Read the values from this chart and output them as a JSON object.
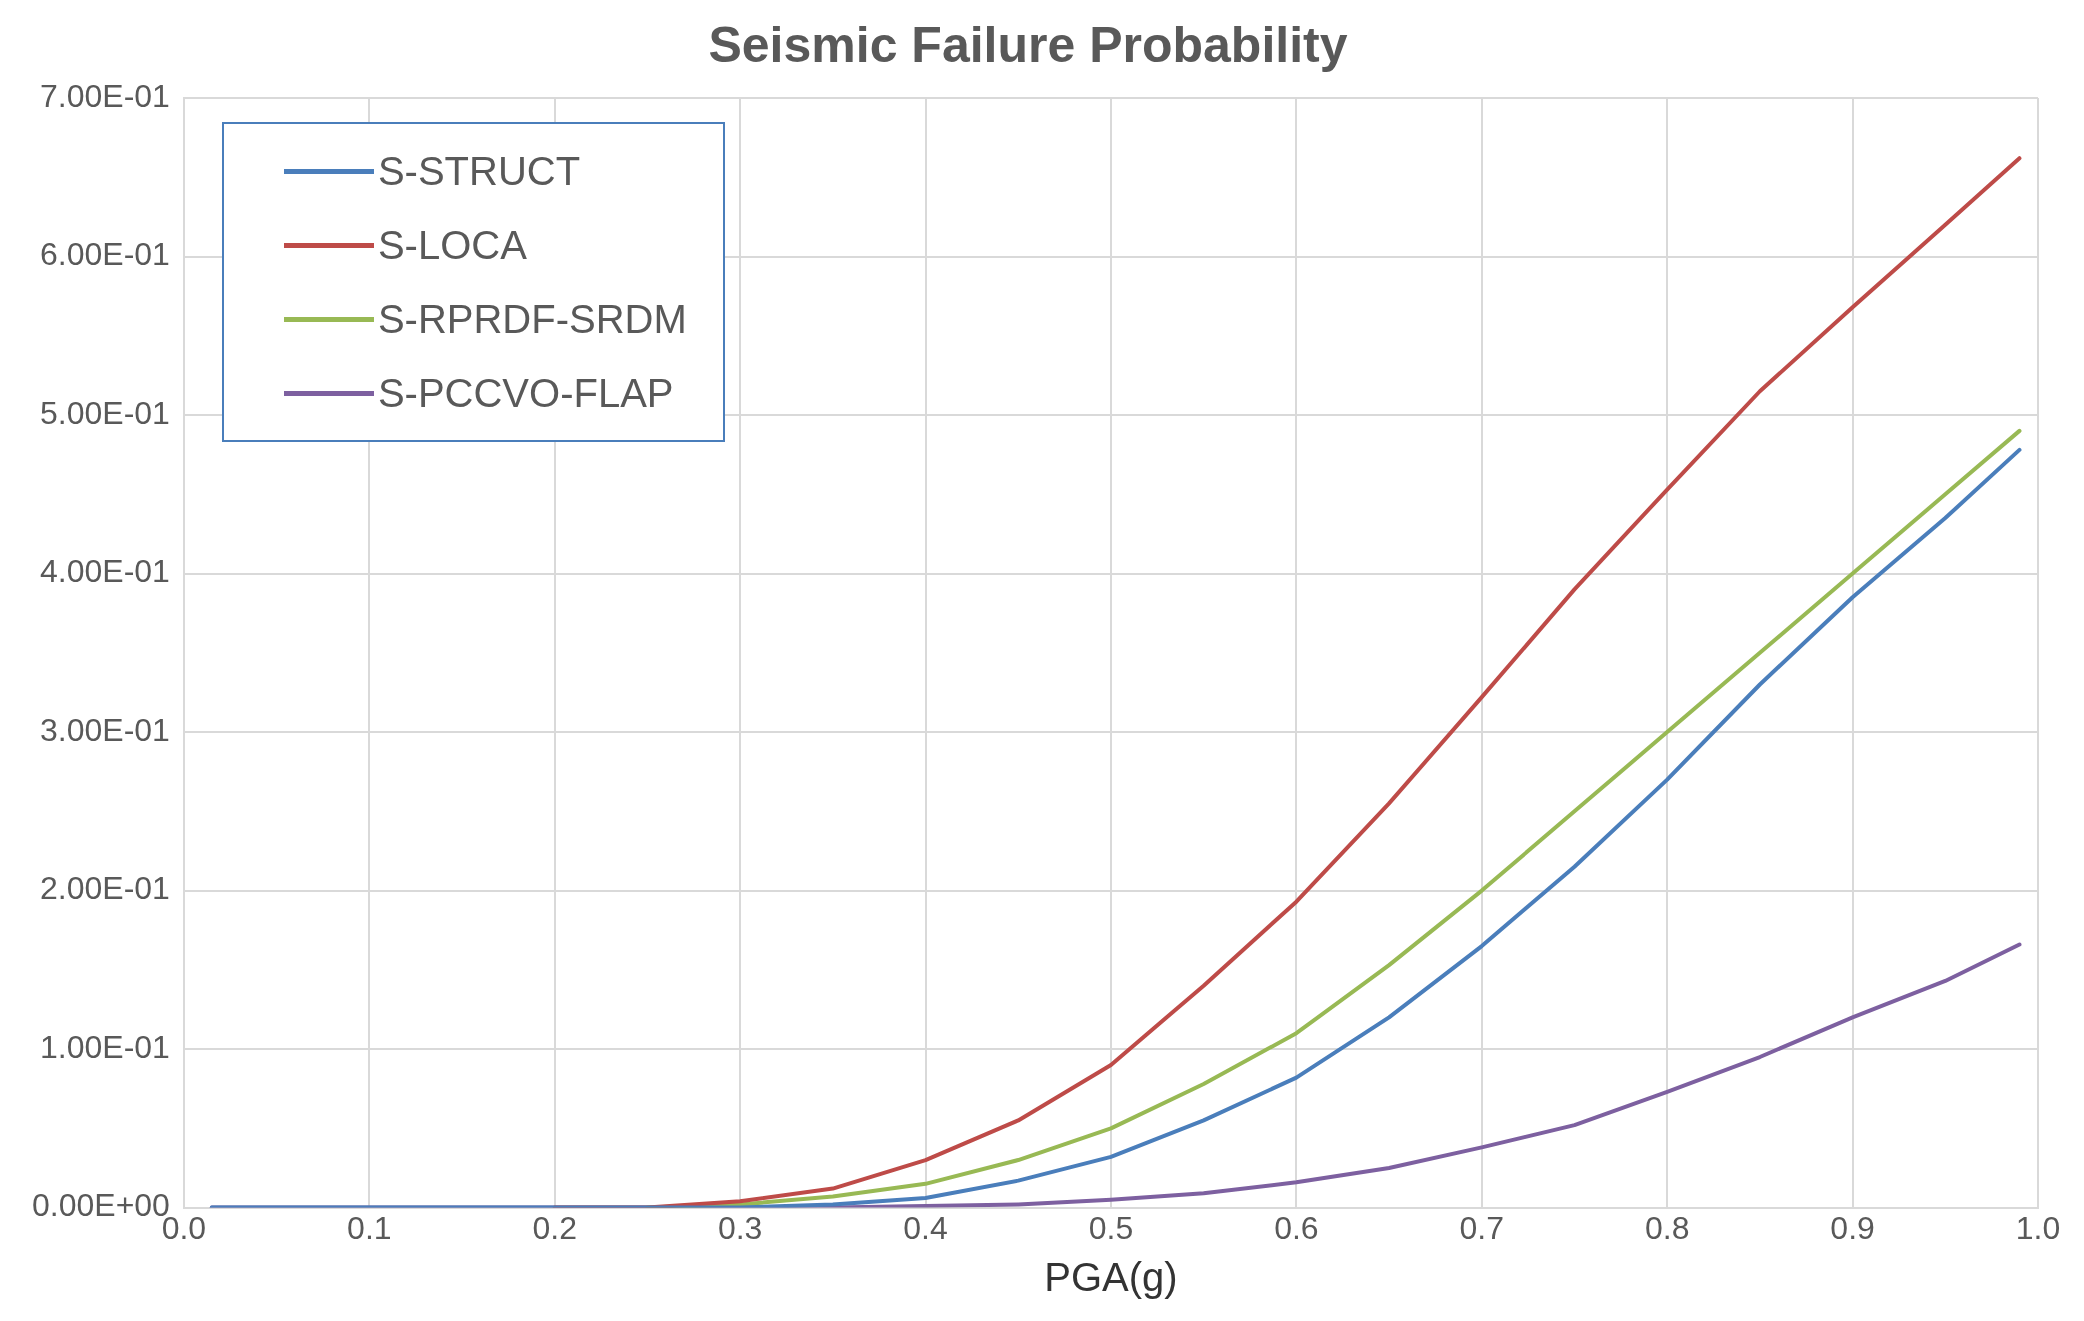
{
  "chart_data": {
    "type": "line",
    "title": "Seismic Failure Probability",
    "xlabel": "PGA(g)",
    "x": [
      0.015,
      0.1,
      0.2,
      0.25,
      0.3,
      0.35,
      0.4,
      0.45,
      0.5,
      0.55,
      0.6,
      0.65,
      0.7,
      0.75,
      0.8,
      0.85,
      0.9,
      0.95,
      0.99
    ],
    "series": [
      {
        "name": "S-STRUCT",
        "color": "#4a7ebb",
        "values": [
          0,
          0,
          0,
          0,
          0,
          0.002,
          0.006,
          0.017,
          0.032,
          0.055,
          0.082,
          0.12,
          0.165,
          0.215,
          0.27,
          0.33,
          0.385,
          0.435,
          0.478
        ]
      },
      {
        "name": "S-LOCA",
        "color": "#be4b48",
        "values": [
          null,
          null,
          0,
          0,
          0.004,
          0.012,
          0.03,
          0.055,
          0.09,
          0.14,
          0.193,
          0.255,
          0.322,
          0.39,
          0.453,
          0.515,
          0.568,
          0.62,
          0.662
        ]
      },
      {
        "name": "S-RPRDF-SRDM",
        "color": "#98b954",
        "values": [
          null,
          null,
          null,
          0,
          0.002,
          0.007,
          0.015,
          0.03,
          0.05,
          0.078,
          0.11,
          0.153,
          0.2,
          0.25,
          0.3,
          0.35,
          0.4,
          0.45,
          0.49
        ]
      },
      {
        "name": "S-PCCVO-FLAP",
        "color": "#7d60a0",
        "values": [
          0,
          0,
          0,
          0,
          0,
          0,
          0.001,
          0.002,
          0.005,
          0.009,
          0.016,
          0.025,
          0.038,
          0.052,
          0.073,
          0.095,
          0.12,
          0.143,
          0.166
        ]
      }
    ],
    "xlim": [
      0,
      1
    ],
    "xticks": [
      {
        "value": 0,
        "label": "0.0"
      },
      0.1,
      0.2,
      0.3,
      0.4,
      0.5,
      0.6,
      0.7,
      0.8,
      0.9,
      {
        "value": 1,
        "label": "1.0"
      }
    ],
    "ylim": [
      0,
      0.7
    ],
    "yticks": [
      {
        "value": 0,
        "label": "0.00E+00"
      },
      {
        "value": 0.1,
        "label": "1.00E-01"
      },
      {
        "value": 0.2,
        "label": "2.00E-01"
      },
      {
        "value": 0.3,
        "label": "3.00E-01"
      },
      {
        "value": 0.4,
        "label": "4.00E-01"
      },
      {
        "value": 0.5,
        "label": "5.00E-01"
      },
      {
        "value": 0.6,
        "label": "6.00E-01"
      },
      {
        "value": 0.7,
        "label": "7.00E-01"
      }
    ],
    "grid": true,
    "legend": "top left",
    "marker": "none",
    "line_style": "solid"
  }
}
